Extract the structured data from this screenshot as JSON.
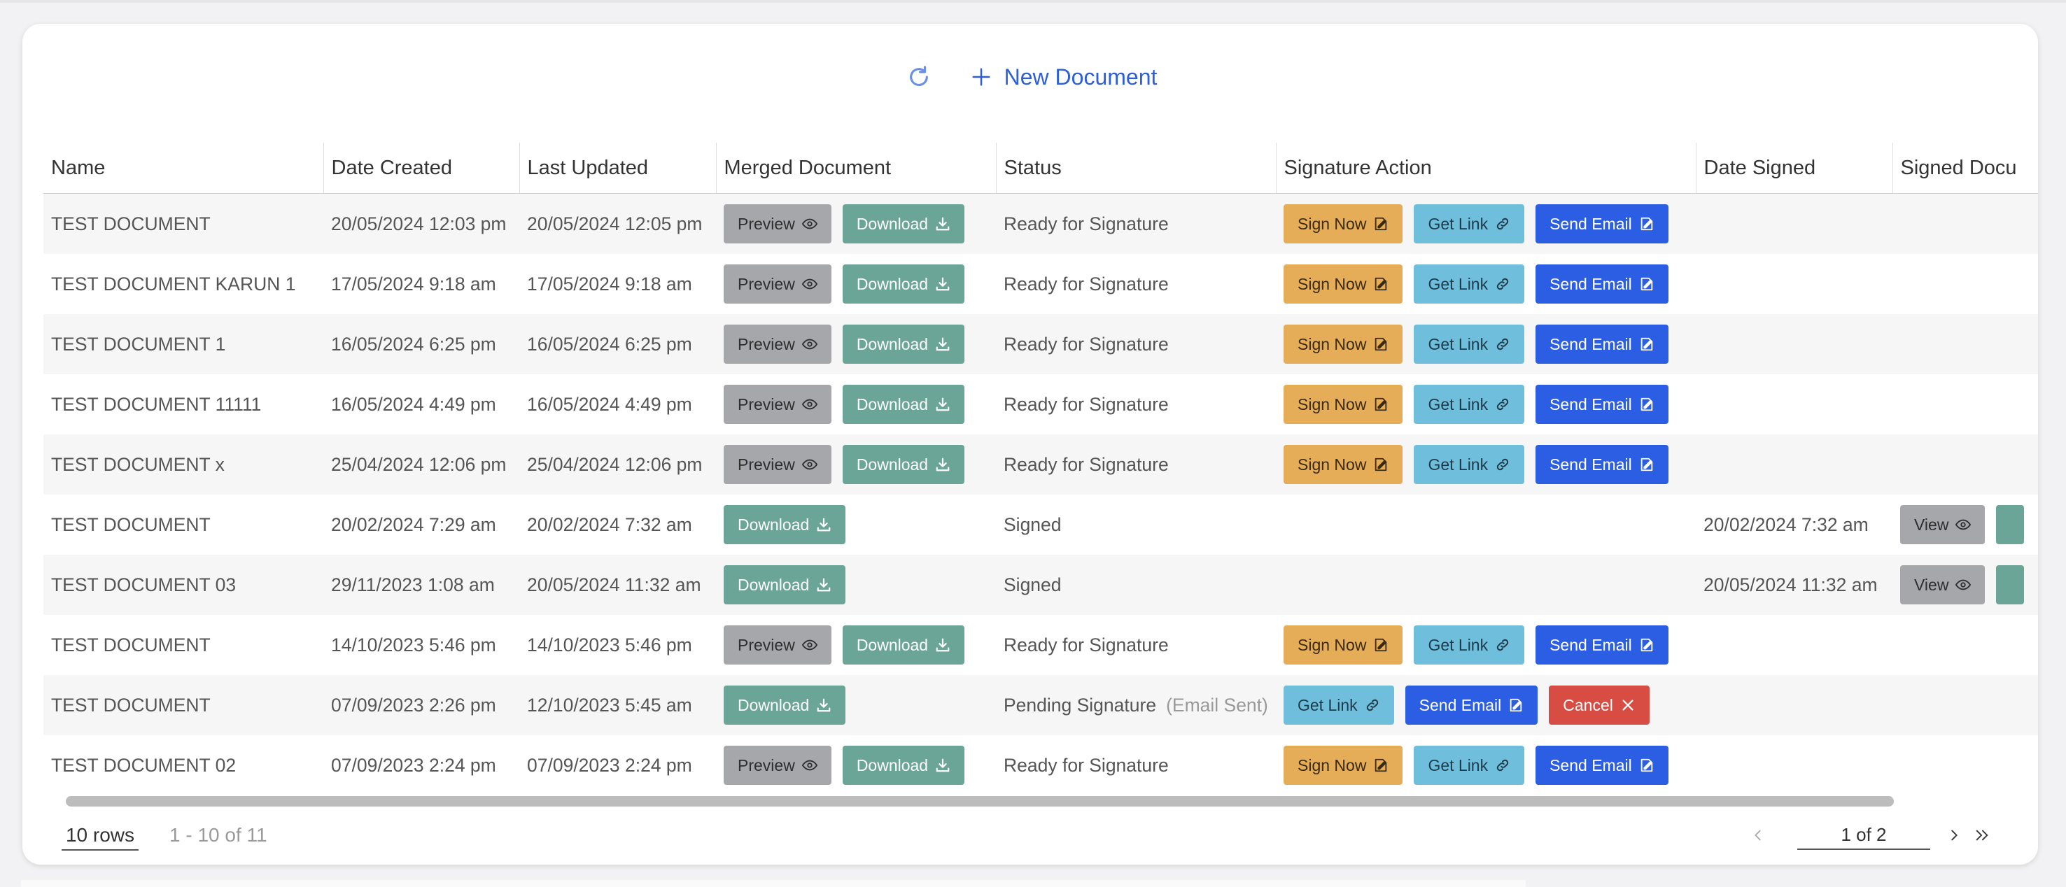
{
  "toolbar": {
    "new_document_label": "New Document"
  },
  "columns": [
    "Name",
    "Date Created",
    "Last Updated",
    "Merged Document",
    "Status",
    "Signature Action",
    "Date Signed",
    "Signed Docu"
  ],
  "buttons": {
    "preview": "Preview",
    "download": "Download",
    "sign_now": "Sign Now",
    "get_link": "Get Link",
    "send_email": "Send Email",
    "cancel": "Cancel",
    "view": "View"
  },
  "rows": [
    {
      "name": "TEST DOCUMENT",
      "created": "20/05/2024 12:03 pm",
      "updated": "20/05/2024 12:05 pm",
      "status": "Ready for Signature",
      "signed": ""
    },
    {
      "name": "TEST DOCUMENT KARUN 1",
      "created": "17/05/2024 9:18 am",
      "updated": "17/05/2024 9:18 am",
      "status": "Ready for Signature",
      "signed": ""
    },
    {
      "name": "TEST DOCUMENT 1",
      "created": "16/05/2024 6:25 pm",
      "updated": "16/05/2024 6:25 pm",
      "status": "Ready for Signature",
      "signed": ""
    },
    {
      "name": "TEST DOCUMENT 11111",
      "created": "16/05/2024 4:49 pm",
      "updated": "16/05/2024 4:49 pm",
      "status": "Ready for Signature",
      "signed": ""
    },
    {
      "name": "TEST DOCUMENT x",
      "created": "25/04/2024 12:06 pm",
      "updated": "25/04/2024 12:06 pm",
      "status": "Ready for Signature",
      "signed": ""
    },
    {
      "name": "TEST DOCUMENT",
      "created": "20/02/2024 7:29 am",
      "updated": "20/02/2024 7:32 am",
      "status": "Signed",
      "signed": "20/02/2024 7:32 am"
    },
    {
      "name": "TEST DOCUMENT 03",
      "created": "29/11/2023 1:08 am",
      "updated": "20/05/2024 11:32 am",
      "status": "Signed",
      "signed": "20/05/2024 11:32 am"
    },
    {
      "name": "TEST DOCUMENT",
      "created": "14/10/2023 5:46 pm",
      "updated": "14/10/2023 5:46 pm",
      "status": "Ready for Signature",
      "signed": ""
    },
    {
      "name": "TEST DOCUMENT",
      "created": "07/09/2023 2:26 pm",
      "updated": "12/10/2023 5:45 am",
      "status": "Pending Signature",
      "status_note": "(Email Sent)",
      "signed": ""
    },
    {
      "name": "TEST DOCUMENT 02",
      "created": "07/09/2023 2:24 pm",
      "updated": "07/09/2023 2:24 pm",
      "status": "Ready for Signature",
      "signed": ""
    }
  ],
  "footer": {
    "rows_label": "10 rows",
    "range_label": "1 - 10 of 11",
    "page_label": "1 of 2"
  },
  "colors": {
    "accent": "#2f5fd8",
    "download": "#6aa597",
    "sign": "#e6ad58",
    "link": "#6fbfdc",
    "email": "#2b5ee2",
    "cancel": "#d74d43",
    "preview": "#a6a7ab"
  },
  "icons": {
    "refresh": "refresh-icon",
    "plus": "plus-icon",
    "eye": "eye-icon",
    "download": "download-icon",
    "sign": "signature-icon",
    "link": "link-icon",
    "close": "close-icon"
  }
}
